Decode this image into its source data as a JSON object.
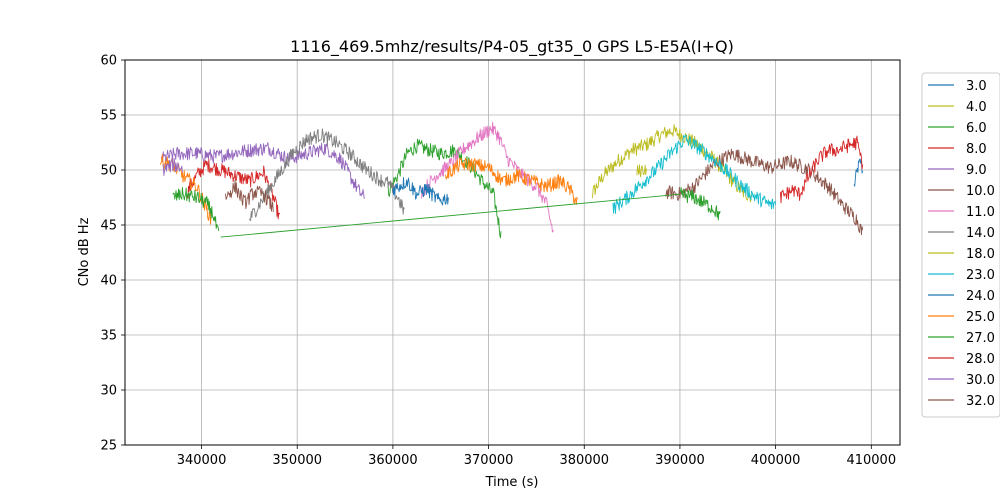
{
  "chart_data": {
    "type": "line",
    "title": "1116_469.5mhz/results/P4-05_gt35_0 GPS L5-E5A(I+Q)",
    "xlabel": "Time (s)",
    "ylabel": "CNo dB Hz",
    "xlim": [
      332000,
      413000
    ],
    "ylim": [
      25,
      60
    ],
    "xticks": [
      340000,
      350000,
      360000,
      370000,
      380000,
      390000,
      400000,
      410000
    ],
    "yticks": [
      25,
      30,
      35,
      40,
      45,
      50,
      55,
      60
    ],
    "grid": true,
    "legend_position": "outside-right",
    "series": [
      {
        "name": "3.0",
        "color": "#1f77b4",
        "segments": [
          [
            [
              408200,
              48.5
            ],
            [
              408600,
              50.2
            ],
            [
              408900,
              50.8
            ],
            [
              409100,
              49.8
            ]
          ]
        ]
      },
      {
        "name": "4.0",
        "color": "#bcbd22",
        "segments": [
          [
            [
              380800,
              47.8
            ],
            [
              382000,
              49.5
            ],
            [
              383500,
              50.8
            ],
            [
              385000,
              51.8
            ],
            [
              386500,
              52.3
            ],
            [
              388000,
              53.2
            ],
            [
              389200,
              53.6
            ],
            [
              390500,
              53.0
            ],
            [
              392000,
              52.2
            ],
            [
              393500,
              51.0
            ],
            [
              395000,
              49.5
            ],
            [
              396500,
              48.0
            ],
            [
              397500,
              47.6
            ]
          ]
        ]
      },
      {
        "name": "6.0",
        "color": "#2ca02c",
        "segments": [
          [
            [
              359500,
              48.0
            ],
            [
              360500,
              49.5
            ],
            [
              361500,
              51.5
            ],
            [
              362500,
              52.2
            ],
            [
              363800,
              51.8
            ],
            [
              365000,
              51.5
            ],
            [
              366500,
              51.8
            ],
            [
              368000,
              50.5
            ],
            [
              369500,
              48.8
            ],
            [
              370500,
              47.8
            ],
            [
              371000,
              45.5
            ],
            [
              371300,
              44.0
            ]
          ]
        ]
      },
      {
        "name": "8.0",
        "color": "#d62728",
        "segments": [
          [
            [
              338500,
              48.0
            ],
            [
              339500,
              49.5
            ],
            [
              340500,
              50.5
            ],
            [
              342000,
              50.0
            ],
            [
              343500,
              49.5
            ],
            [
              345000,
              49.0
            ],
            [
              346500,
              49.8
            ],
            [
              347500,
              47.5
            ],
            [
              348200,
              45.5
            ]
          ]
        ]
      },
      {
        "name": "9.0",
        "color": "#9467bd",
        "segments": [
          [
            [
              335800,
              51.0
            ],
            [
              337500,
              51.5
            ],
            [
              339500,
              51.5
            ],
            [
              341500,
              51.2
            ],
            [
              343000,
              51.5
            ],
            [
              345000,
              51.8
            ],
            [
              347000,
              52.0
            ],
            [
              349000,
              51.0
            ],
            [
              351000,
              51.5
            ],
            [
              353000,
              52.0
            ],
            [
              354500,
              51.0
            ],
            [
              355500,
              49.5
            ],
            [
              356500,
              48.0
            ],
            [
              357000,
              47.5
            ]
          ]
        ]
      },
      {
        "name": "10.0",
        "color": "#8c564b",
        "segments": [
          [
            [
              388500,
              48.0
            ],
            [
              390000,
              47.8
            ],
            [
              391500,
              48.5
            ],
            [
              393500,
              50.5
            ],
            [
              395500,
              51.5
            ],
            [
              397500,
              50.8
            ],
            [
              399500,
              50.2
            ],
            [
              401500,
              50.8
            ],
            [
              403500,
              50.0
            ],
            [
              405500,
              48.5
            ],
            [
              407000,
              46.8
            ],
            [
              408500,
              45.5
            ],
            [
              409100,
              44.2
            ]
          ]
        ]
      },
      {
        "name": "11.0",
        "color": "#e377c2",
        "segments": [
          [
            [
              363000,
              48.0
            ],
            [
              364500,
              49.5
            ],
            [
              366000,
              50.5
            ],
            [
              367500,
              52.0
            ],
            [
              369000,
              53.0
            ],
            [
              370300,
              53.8
            ],
            [
              371000,
              53.2
            ],
            [
              372000,
              51.0
            ],
            [
              373500,
              49.5
            ],
            [
              375000,
              48.5
            ],
            [
              376000,
              47.0
            ],
            [
              376800,
              44.2
            ]
          ]
        ]
      },
      {
        "name": "14.0",
        "color": "#7f7f7f",
        "segments": [
          [
            [
              345000,
              45.5
            ],
            [
              346500,
              47.5
            ],
            [
              348000,
              49.5
            ],
            [
              349500,
              51.5
            ],
            [
              351000,
              52.8
            ],
            [
              352500,
              53.2
            ],
            [
              354000,
              52.5
            ],
            [
              355500,
              51.5
            ],
            [
              357000,
              50.2
            ],
            [
              358500,
              49.2
            ],
            [
              359500,
              48.8
            ],
            [
              360500,
              47.5
            ],
            [
              361200,
              46.2
            ]
          ]
        ]
      },
      {
        "name": "18.0",
        "color": "#bcbd22",
        "segments": [
          [
            [
              385500,
              49.8
            ],
            [
              386500,
              50.2
            ]
          ]
        ]
      },
      {
        "name": "23.0",
        "color": "#17becf",
        "segments": [
          [
            [
              383000,
              46.5
            ],
            [
              384500,
              47.5
            ],
            [
              386000,
              48.8
            ],
            [
              387500,
              50.0
            ],
            [
              389000,
              51.5
            ],
            [
              390500,
              52.8
            ],
            [
              392000,
              52.0
            ],
            [
              393500,
              51.0
            ],
            [
              395000,
              49.8
            ],
            [
              396500,
              48.5
            ],
            [
              398000,
              47.5
            ],
            [
              399500,
              46.8
            ],
            [
              400000,
              47.0
            ]
          ]
        ]
      },
      {
        "name": "24.0",
        "color": "#1f77b4",
        "segments": [
          [
            [
              360000,
              48.2
            ],
            [
              361500,
              49.0
            ],
            [
              362500,
              47.8
            ],
            [
              363500,
              48.3
            ],
            [
              364800,
              47.2
            ],
            [
              365800,
              47.5
            ]
          ]
        ]
      },
      {
        "name": "25.0",
        "color": "#ff7f0e",
        "segments": [
          [
            [
              335700,
              50.8
            ],
            [
              337000,
              50.5
            ],
            [
              338000,
              49.5
            ],
            [
              339500,
              48.5
            ],
            [
              340500,
              46.5
            ],
            [
              341000,
              45.5
            ]
          ],
          [
            [
              365500,
              49.5
            ],
            [
              367000,
              50.5
            ],
            [
              368500,
              50.5
            ],
            [
              370000,
              50.2
            ],
            [
              371500,
              49.0
            ],
            [
              373000,
              49.5
            ],
            [
              374500,
              49.0
            ],
            [
              376000,
              48.5
            ],
            [
              377500,
              49.0
            ],
            [
              378500,
              48.2
            ],
            [
              379300,
              47.0
            ]
          ]
        ]
      },
      {
        "name": "27.0",
        "color": "#2ca02c",
        "segments": [
          [
            [
              337000,
              47.5
            ],
            [
              338000,
              47.8
            ],
            [
              339500,
              47.5
            ],
            [
              340500,
              47.0
            ],
            [
              341200,
              46.0
            ],
            [
              341800,
              44.0
            ]
          ],
          [
            [
              342000,
              43.9
            ],
            [
              390000,
              47.8
            ]
          ],
          [
            [
              390000,
              47.8
            ],
            [
              391500,
              47.5
            ],
            [
              392500,
              47.0
            ],
            [
              393500,
              46.5
            ],
            [
              394200,
              45.8
            ]
          ]
        ]
      },
      {
        "name": "28.0",
        "color": "#d62728",
        "segments": [
          [
            [
              400500,
              47.5
            ],
            [
              401800,
              48.2
            ],
            [
              402500,
              47.8
            ],
            [
              403500,
              49.5
            ],
            [
              404500,
              51.0
            ],
            [
              405500,
              51.8
            ],
            [
              406500,
              51.8
            ],
            [
              407500,
              52.2
            ],
            [
              408500,
              52.5
            ],
            [
              409100,
              50.5
            ]
          ]
        ]
      },
      {
        "name": "30.0",
        "color": "#9467bd",
        "segments": [
          [
            [
              336000,
              50.0
            ],
            [
              337000,
              50.5
            ],
            [
              338000,
              50.2
            ]
          ]
        ]
      },
      {
        "name": "32.0",
        "color": "#8c564b",
        "segments": [
          [
            [
              342500,
              47.5
            ],
            [
              343500,
              48.5
            ],
            [
              344500,
              47.0
            ],
            [
              345500,
              48.0
            ],
            [
              346500,
              47.8
            ],
            [
              347500,
              46.5
            ]
          ]
        ]
      }
    ]
  }
}
